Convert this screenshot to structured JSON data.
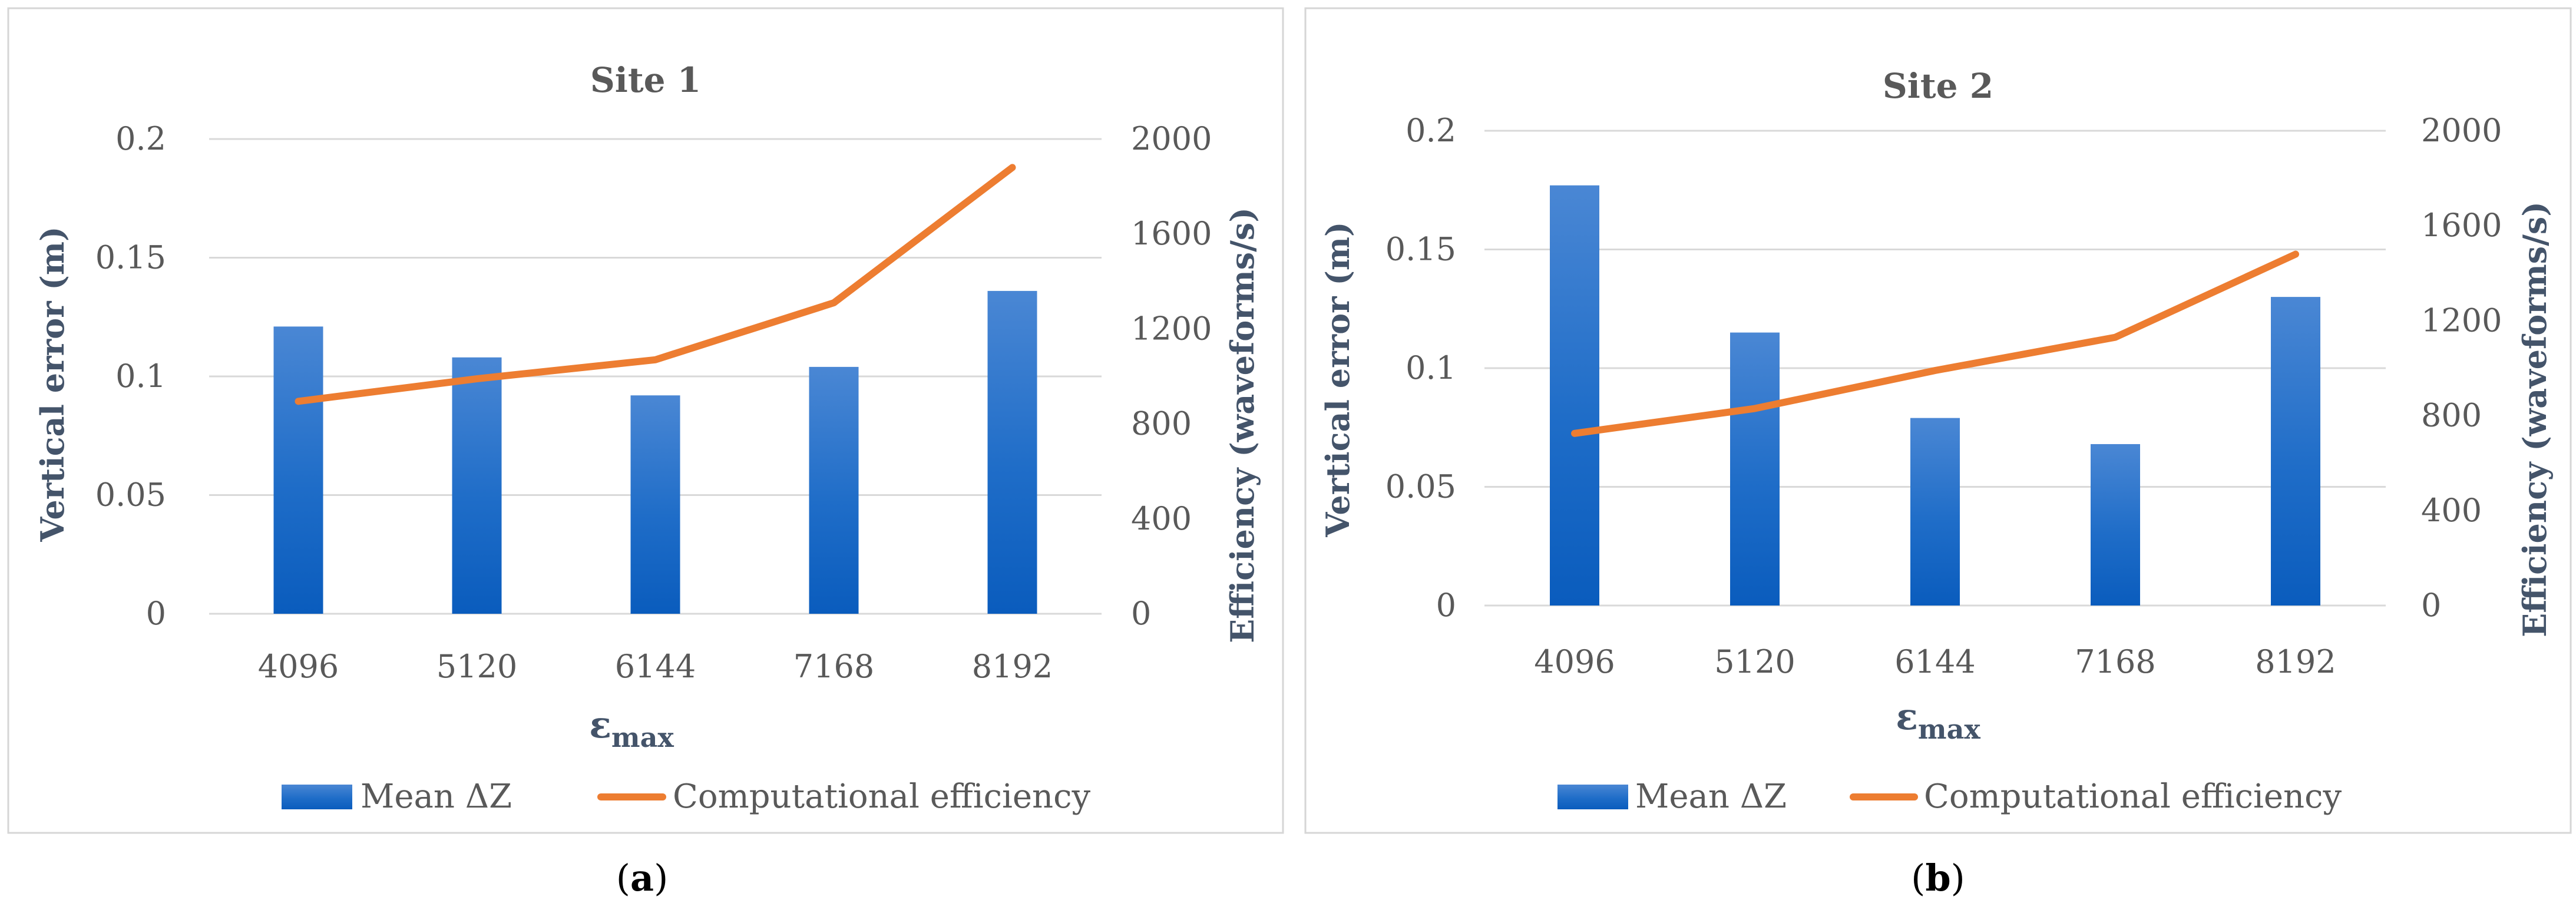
{
  "chart_data": [
    {
      "type": "bar+line",
      "title": "Site 1",
      "panel_label": {
        "open": "(",
        "letter": "a",
        "close": ")"
      },
      "categories": [
        "4096",
        "5120",
        "6144",
        "7168",
        "8192"
      ],
      "xlabel": {
        "main": "ε",
        "sub": "max"
      },
      "ylabel": "Vertical error (m)",
      "y2label": "Efficiency (waveforms/s)",
      "ylim": [
        0,
        0.2
      ],
      "y2lim": [
        0,
        2000
      ],
      "yticks": [
        "0",
        "0.05",
        "0.1",
        "0.15",
        "0.2"
      ],
      "y2ticks": [
        "0",
        "400",
        "800",
        "1200",
        "1600",
        "2000"
      ],
      "grid": true,
      "legend_position": "bottom",
      "series": [
        {
          "name": "Mean ΔZ",
          "kind": "bar",
          "axis": "left",
          "color": "#1a68c6",
          "values": [
            0.121,
            0.108,
            0.092,
            0.104,
            0.136
          ]
        },
        {
          "name": "Computational efficiency",
          "kind": "line",
          "axis": "right",
          "color": "#ed7d31",
          "values": [
            895,
            990,
            1070,
            1310,
            1880
          ]
        }
      ]
    },
    {
      "type": "bar+line",
      "title": "Site 2",
      "panel_label": {
        "open": "(",
        "letter": "b",
        "close": ")"
      },
      "categories": [
        "4096",
        "5120",
        "6144",
        "7168",
        "8192"
      ],
      "xlabel": {
        "main": "ε",
        "sub": "max"
      },
      "ylabel": "Vertical error (m)",
      "y2label": "Efficiency (waveforms/s)",
      "ylim": [
        0,
        0.2
      ],
      "y2lim": [
        0,
        2000
      ],
      "yticks": [
        "0",
        "0.05",
        "0.1",
        "0.15",
        "0.2"
      ],
      "y2ticks": [
        "0",
        "400",
        "800",
        "1200",
        "1600",
        "2000"
      ],
      "grid": true,
      "legend_position": "bottom",
      "series": [
        {
          "name": "Mean ΔZ",
          "kind": "bar",
          "axis": "left",
          "color": "#1a68c6",
          "values": [
            0.177,
            0.115,
            0.079,
            0.068,
            0.13
          ]
        },
        {
          "name": "Computational efficiency",
          "kind": "line",
          "axis": "right",
          "color": "#ed7d31",
          "values": [
            725,
            830,
            990,
            1130,
            1480
          ]
        }
      ]
    }
  ]
}
